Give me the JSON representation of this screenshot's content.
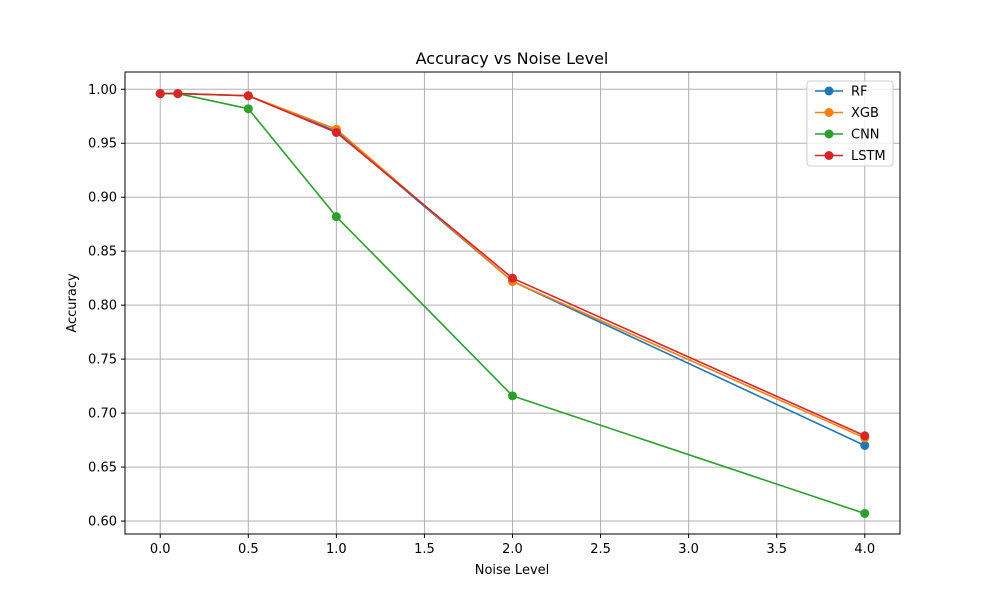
{
  "chart_data": {
    "type": "line",
    "title": "Accuracy vs Noise Level",
    "xlabel": "Noise Level",
    "ylabel": "Accuracy",
    "x": [
      0.0,
      0.1,
      0.5,
      1.0,
      2.0,
      4.0
    ],
    "xlim": [
      -0.2,
      4.2
    ],
    "ylim": [
      0.588,
      1.016
    ],
    "xticks": [
      0.0,
      0.5,
      1.0,
      1.5,
      2.0,
      2.5,
      3.0,
      3.5,
      4.0
    ],
    "xtick_labels": [
      "0.0",
      "0.5",
      "1.0",
      "1.5",
      "2.0",
      "2.5",
      "3.0",
      "3.5",
      "4.0"
    ],
    "yticks": [
      0.6,
      0.65,
      0.7,
      0.75,
      0.8,
      0.85,
      0.9,
      0.95,
      1.0
    ],
    "ytick_labels": [
      "0.60",
      "0.65",
      "0.70",
      "0.75",
      "0.80",
      "0.85",
      "0.90",
      "0.95",
      "1.00"
    ],
    "grid": true,
    "legend_position": "top-right",
    "series": [
      {
        "name": "RF",
        "color": "#1f77b4",
        "values": [
          0.996,
          0.996,
          0.994,
          0.961,
          0.822,
          0.67
        ]
      },
      {
        "name": "XGB",
        "color": "#ff7f0e",
        "values": [
          0.996,
          0.996,
          0.994,
          0.963,
          0.822,
          0.677
        ]
      },
      {
        "name": "CNN",
        "color": "#2ca02c",
        "values": [
          0.996,
          0.996,
          0.982,
          0.882,
          0.716,
          0.607
        ]
      },
      {
        "name": "LSTM",
        "color": "#d62728",
        "values": [
          0.996,
          0.996,
          0.994,
          0.96,
          0.825,
          0.679
        ]
      }
    ]
  }
}
